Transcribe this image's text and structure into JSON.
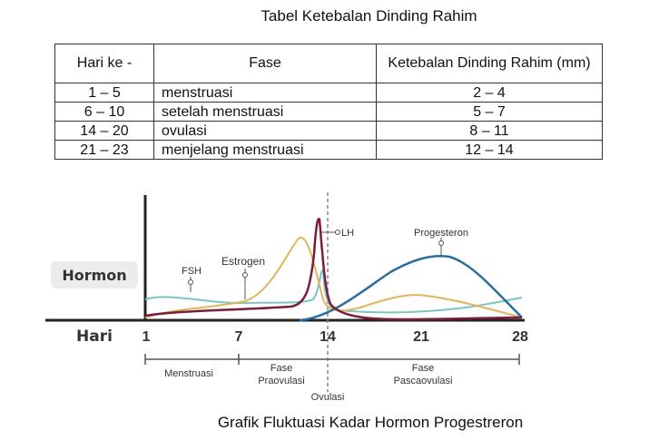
{
  "title": "Tabel Ketebalan Dinding Rahim",
  "table": {
    "headers": [
      "Hari ke -",
      "Fase",
      "Ketebalan Dinding Rahim (mm)"
    ],
    "rows": [
      [
        "1 – 5",
        "menstruasi",
        "2 – 4"
      ],
      [
        "6 – 10",
        "setelah menstruasi",
        "5 – 7"
      ],
      [
        "14 – 20",
        "ovulasi",
        "8 – 11"
      ],
      [
        "21 – 23",
        "menjelang menstruasi",
        "12 – 14"
      ]
    ]
  },
  "graph": {
    "y_label": "Hormon",
    "x_label": "Hari",
    "x_ticks": [
      "1",
      "7",
      "14",
      "21",
      "28"
    ],
    "labels": {
      "fsh": "FSH",
      "estrogen": "Estrogen",
      "lh": "LH",
      "progesteron": "Progesteron"
    },
    "phases": {
      "menstruasi": "Menstruasi",
      "praovulasi_line1": "Fase",
      "praovulasi_line2": "Praovulasi",
      "ovulasi": "Ovulasi",
      "pascaovulasi_line1": "Fase",
      "pascaovulasi_line2": "Pascaovulasi"
    },
    "colors": {
      "fsh": "#7ec4c4",
      "estrogen": "#e0b55e",
      "lh": "#7a1f3a",
      "progesteron": "#2c6e9e",
      "axis": "#222222"
    }
  },
  "caption": "Grafik Fluktuasi Kadar Hormon Progestreron"
}
